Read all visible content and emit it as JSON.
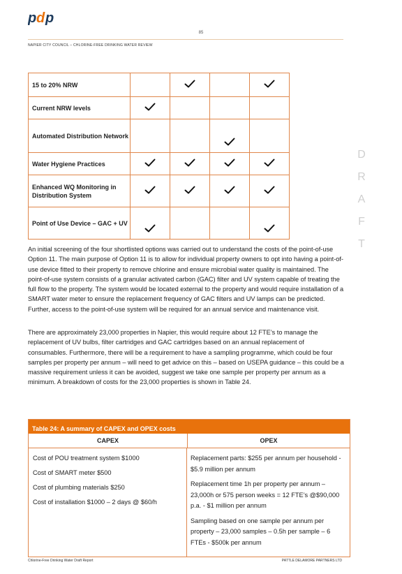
{
  "header": {
    "logo_text": "pdp",
    "page_number": "85",
    "running_title": "NAPIER CITY COUNCIL – CHLORINE-FREE DRINKING WATER REVIEW"
  },
  "matrix": {
    "rows": [
      {
        "label": "15 to 20% NRW",
        "checks": [
          false,
          true,
          false,
          true
        ]
      },
      {
        "label": "Current NRW levels",
        "checks": [
          true,
          false,
          false,
          false
        ]
      },
      {
        "label": "Automated Distribution Network",
        "checks": [
          false,
          false,
          true,
          false
        ]
      },
      {
        "label": "Water Hygiene Practices",
        "checks": [
          true,
          true,
          true,
          true
        ]
      },
      {
        "label": "Enhanced WQ Monitoring in Distribution System",
        "checks": [
          true,
          true,
          true,
          true
        ]
      },
      {
        "label": "Point of Use Device – GAC + UV",
        "checks": [
          true,
          false,
          false,
          true
        ]
      }
    ]
  },
  "watermark": [
    "D",
    "R",
    "A",
    "F",
    "T"
  ],
  "body": {
    "paragraph1": "An initial screening of the four shortlisted options was carried out to understand the costs of the point-of-use Option 11. The main purpose of Option 11 is to allow for individual property owners to opt into having a point-of-use device fitted to their property to remove chlorine and ensure microbial water quality is maintained. The point-of-use system consists of a granular activated carbon (GAC) filter and UV system capable of treating the full flow to the property. The system would be located external to the property and would require installation of a SMART water meter to ensure the replacement frequency of GAC filters and UV lamps can be predicted. Further, access to the point-of-use system will be required for an annual service and maintenance visit.",
    "paragraph2": "There are approximately 23,000 properties in Napier, this would require about 12 FTE’s to manage the replacement of UV bulbs, filter cartridges and GAC cartridges based on an annual replacement of consumables. Furthermore, there will be a requirement to have a sampling programme, which could be four samples per property per annum – will need to get advice on this – based on USEPA guidance – this could be a massive requirement unless it can be avoided, suggest we take one sample per property per annum as a minimum. A breakdown of costs for the 23,000 properties is shown in Table 24."
  },
  "table24": {
    "caption": "Table 24: A summary of CAPEX and OPEX costs",
    "capex_header": "CAPEX",
    "opex_header": "OPEX",
    "capex_items": [
      "Cost of POU treatment system $1000",
      "Cost of SMART meter $500",
      "Cost of plumbing materials $250",
      "Cost of installation $1000 – 2 days @ $60/h"
    ],
    "opex_items": [
      "Replacement parts: $255 per annum per household - $5.9 million per annum",
      "Replacement time 1h per property per annum – 23,000h or 575 person weeks = 12 FTE’s @$90,000 p.a. - $1 million per annum",
      "Sampling based on one sample per annum per property – 23,000 samples – 0.5h per sample – 6 FTEs - $500k per annum"
    ]
  },
  "footer": {
    "left": "Chlorine-Free Drinking Water Draft Report",
    "right": "PATTLE DELAMORE PARTNERS LTD"
  },
  "colors": {
    "accent_orange": "#e8720c",
    "border_orange": "#e0864a",
    "logo_blue": "#1d3b5c"
  }
}
